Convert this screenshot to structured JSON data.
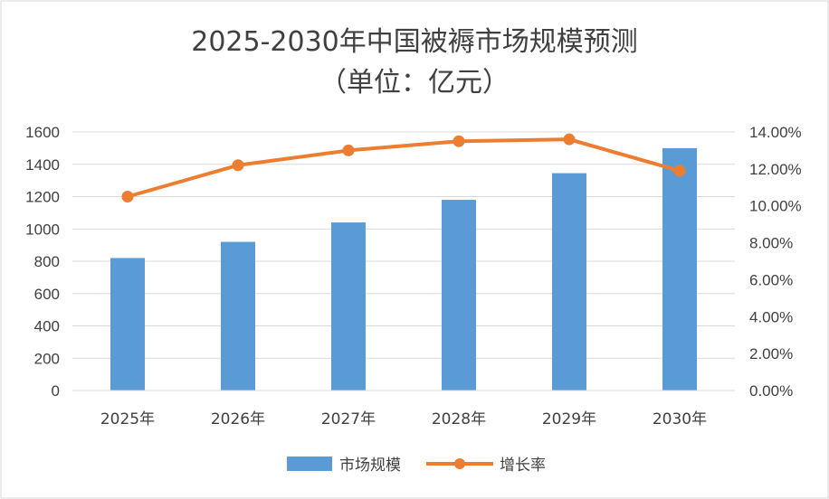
{
  "chart_data": {
    "type": "bar",
    "title": "2025-2030年中国被褥市场规模预测",
    "subtitle": "（单位：亿元）",
    "categories": [
      "2025年",
      "2026年",
      "2027年",
      "2028年",
      "2029年",
      "2030年"
    ],
    "series": [
      {
        "name": "市场规模",
        "type": "bar",
        "axis": "left",
        "values": [
          820,
          920,
          1040,
          1180,
          1345,
          1500
        ]
      },
      {
        "name": "增长率",
        "type": "line",
        "axis": "right",
        "values": [
          0.105,
          0.122,
          0.13,
          0.135,
          0.136,
          0.119
        ]
      }
    ],
    "yleft": {
      "min": 0,
      "max": 1600,
      "ticks": [
        "0",
        "200",
        "400",
        "600",
        "800",
        "1000",
        "1200",
        "1400",
        "1600"
      ]
    },
    "yright": {
      "min": 0,
      "max": 0.14,
      "ticks": [
        "0.00%",
        "2.00%",
        "4.00%",
        "6.00%",
        "8.00%",
        "10.00%",
        "12.00%",
        "14.00%"
      ]
    },
    "grid": true,
    "legend_position": "bottom",
    "colors": {
      "bar": "#5B9BD5",
      "line": "#ED7D31",
      "grid": "#D9D9D9",
      "text": "#404040"
    }
  }
}
